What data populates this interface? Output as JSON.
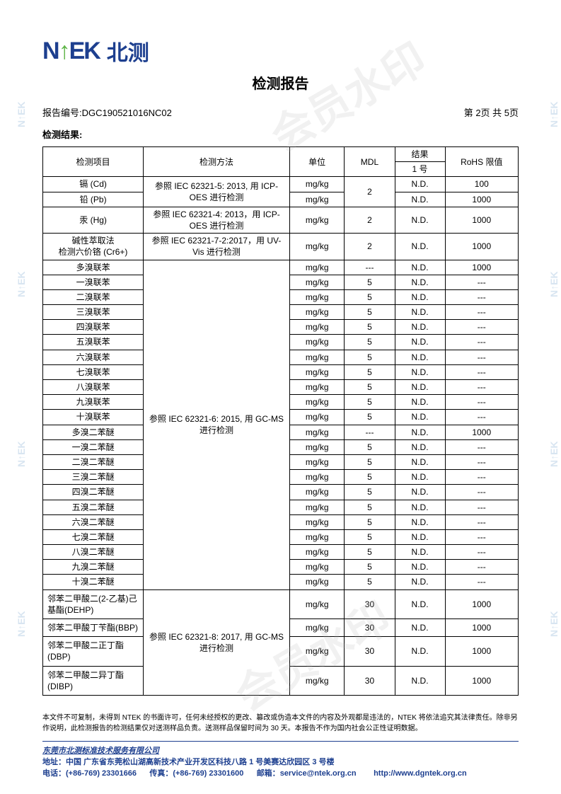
{
  "logo": {
    "prefix": "N",
    "arrow": "↑",
    "suffix": "EK",
    "cn": "北测"
  },
  "title": "检测报告",
  "report_no_label": "报告编号:",
  "report_no": "DGC190521016NC02",
  "page_info": "第 2页 共 5页",
  "section": "检测结果:",
  "watermark_main": "会员水印",
  "watermark_side": "N↑EK",
  "headers": {
    "item": "检测项目",
    "method": "检测方法",
    "unit": "单位",
    "mdl": "MDL",
    "result_top": "结果",
    "result_sub": "1 号",
    "limit": "RoHS 限值"
  },
  "methods": {
    "m1": "参照 IEC 62321-5: 2013, 用 ICP-OES 进行检测",
    "m2": "参照 IEC 62321-4: 2013，用 ICP-OES 进行检测",
    "m3": "参照  IEC 62321-7-2:2017，用 UV-Vis 进行检测",
    "m4": "参照 IEC 62321-6: 2015, 用 GC-MS 进行检测",
    "m5": "参照 IEC 62321-8: 2017, 用 GC-MS 进行检测"
  },
  "rows": [
    {
      "item": "镉 (Cd)",
      "unit": "mg/kg",
      "mdl": "",
      "res": "N.D.",
      "limit": "100"
    },
    {
      "item": "铅 (Pb)",
      "unit": "mg/kg",
      "mdl": "",
      "res": "N.D.",
      "limit": "1000"
    },
    {
      "item": "汞 (Hg)",
      "unit": "mg/kg",
      "mdl": "2",
      "res": "N.D.",
      "limit": "1000"
    },
    {
      "item": "碱性萃取法\n检测六价铬 (Cr6+)",
      "unit": "mg/kg",
      "mdl": "2",
      "res": "N.D.",
      "limit": "1000"
    },
    {
      "item": "多溴联苯",
      "unit": "mg/kg",
      "mdl": "---",
      "res": "N.D.",
      "limit": "1000"
    },
    {
      "item": "一溴联苯",
      "unit": "mg/kg",
      "mdl": "5",
      "res": "N.D.",
      "limit": "---"
    },
    {
      "item": "二溴联苯",
      "unit": "mg/kg",
      "mdl": "5",
      "res": "N.D.",
      "limit": "---"
    },
    {
      "item": "三溴联苯",
      "unit": "mg/kg",
      "mdl": "5",
      "res": "N.D.",
      "limit": "---"
    },
    {
      "item": "四溴联苯",
      "unit": "mg/kg",
      "mdl": "5",
      "res": "N.D.",
      "limit": "---"
    },
    {
      "item": "五溴联苯",
      "unit": "mg/kg",
      "mdl": "5",
      "res": "N.D.",
      "limit": "---"
    },
    {
      "item": "六溴联苯",
      "unit": "mg/kg",
      "mdl": "5",
      "res": "N.D.",
      "limit": "---"
    },
    {
      "item": "七溴联苯",
      "unit": "mg/kg",
      "mdl": "5",
      "res": "N.D.",
      "limit": "---"
    },
    {
      "item": "八溴联苯",
      "unit": "mg/kg",
      "mdl": "5",
      "res": "N.D.",
      "limit": "---"
    },
    {
      "item": "九溴联苯",
      "unit": "mg/kg",
      "mdl": "5",
      "res": "N.D.",
      "limit": "---"
    },
    {
      "item": "十溴联苯",
      "unit": "mg/kg",
      "mdl": "5",
      "res": "N.D.",
      "limit": "---"
    },
    {
      "item": "多溴二苯醚",
      "unit": "mg/kg",
      "mdl": "---",
      "res": "N.D.",
      "limit": "1000"
    },
    {
      "item": "一溴二苯醚",
      "unit": "mg/kg",
      "mdl": "5",
      "res": "N.D.",
      "limit": "---"
    },
    {
      "item": "二溴二苯醚",
      "unit": "mg/kg",
      "mdl": "5",
      "res": "N.D.",
      "limit": "---"
    },
    {
      "item": "三溴二苯醚",
      "unit": "mg/kg",
      "mdl": "5",
      "res": "N.D.",
      "limit": "---"
    },
    {
      "item": "四溴二苯醚",
      "unit": "mg/kg",
      "mdl": "5",
      "res": "N.D.",
      "limit": "---"
    },
    {
      "item": "五溴二苯醚",
      "unit": "mg/kg",
      "mdl": "5",
      "res": "N.D.",
      "limit": "---"
    },
    {
      "item": "六溴二苯醚",
      "unit": "mg/kg",
      "mdl": "5",
      "res": "N.D.",
      "limit": "---"
    },
    {
      "item": "七溴二苯醚",
      "unit": "mg/kg",
      "mdl": "5",
      "res": "N.D.",
      "limit": "---"
    },
    {
      "item": "八溴二苯醚",
      "unit": "mg/kg",
      "mdl": "5",
      "res": "N.D.",
      "limit": "---"
    },
    {
      "item": "九溴二苯醚",
      "unit": "mg/kg",
      "mdl": "5",
      "res": "N.D.",
      "limit": "---"
    },
    {
      "item": "十溴二苯醚",
      "unit": "mg/kg",
      "mdl": "5",
      "res": "N.D.",
      "limit": "---"
    },
    {
      "item": "邻苯二甲酸二(2-乙基)己基酯(DEHP)",
      "unit": "mg/kg",
      "mdl": "30",
      "res": "N.D.",
      "limit": "1000"
    },
    {
      "item": "邻苯二甲酸丁苄酯(BBP)",
      "unit": "mg/kg",
      "mdl": "30",
      "res": "N.D.",
      "limit": "1000"
    },
    {
      "item": "邻苯二甲酸二正丁酯(DBP)",
      "unit": "mg/kg",
      "mdl": "30",
      "res": "N.D.",
      "limit": "1000"
    },
    {
      "item": "邻苯二甲酸二异丁酯(DIBP)",
      "unit": "mg/kg",
      "mdl": "30",
      "res": "N.D.",
      "limit": "1000"
    }
  ],
  "mdl_shared_1": "2",
  "disclaimer": "本文件不可复制，未得到 NTEK 的书面许可，任何未经授权的更改、篡改或伪造本文件的内容及外观都是违法的，NTEK 将依法追究其法律责任。除非另作说明，此检测报告的检测结果仅对送测样品负责。送测样品保留时间为 30 天。本报告不作为国内社会公正性证明数据。",
  "footer": {
    "company": "东莞市北测标准技术服务有限公司",
    "addr_label": "地址：",
    "addr": "中国 广东省东莞松山湖高新技术产业开发区科技八路 1 号美赛达欣园区 3 号楼",
    "tel_label": "电话：",
    "tel": "(+86-769) 23301666",
    "fax_label": "传真：",
    "fax": "(+86-769) 23301600",
    "mail_label": "邮箱：",
    "mail": "service@ntek.org.cn",
    "web": "http://www.dgntek.org.cn"
  }
}
